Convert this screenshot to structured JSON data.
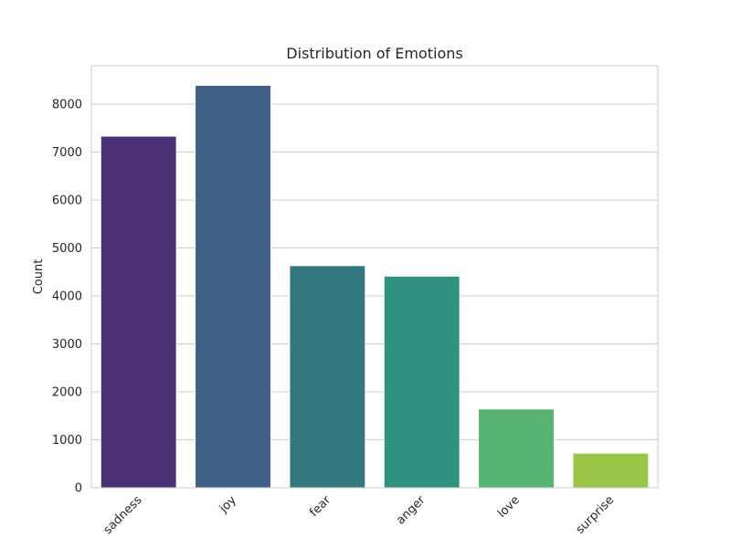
{
  "chart_data": {
    "type": "bar",
    "title": "Distribution of Emotions",
    "xlabel": "",
    "ylabel": "Count",
    "categories": [
      "sadness",
      "joy",
      "fear",
      "anger",
      "love",
      "surprise"
    ],
    "values": [
      7330,
      8390,
      4630,
      4410,
      1640,
      720
    ],
    "colors": [
      "#482f76",
      "#3f5f88",
      "#33777f",
      "#2f927e",
      "#56b472",
      "#9ac647"
    ],
    "ylim": [
      0,
      8800
    ],
    "yticks": [
      0,
      1000,
      2000,
      3000,
      4000,
      5000,
      6000,
      7000,
      8000
    ],
    "grid": "horizontal",
    "palette": "viridis"
  }
}
